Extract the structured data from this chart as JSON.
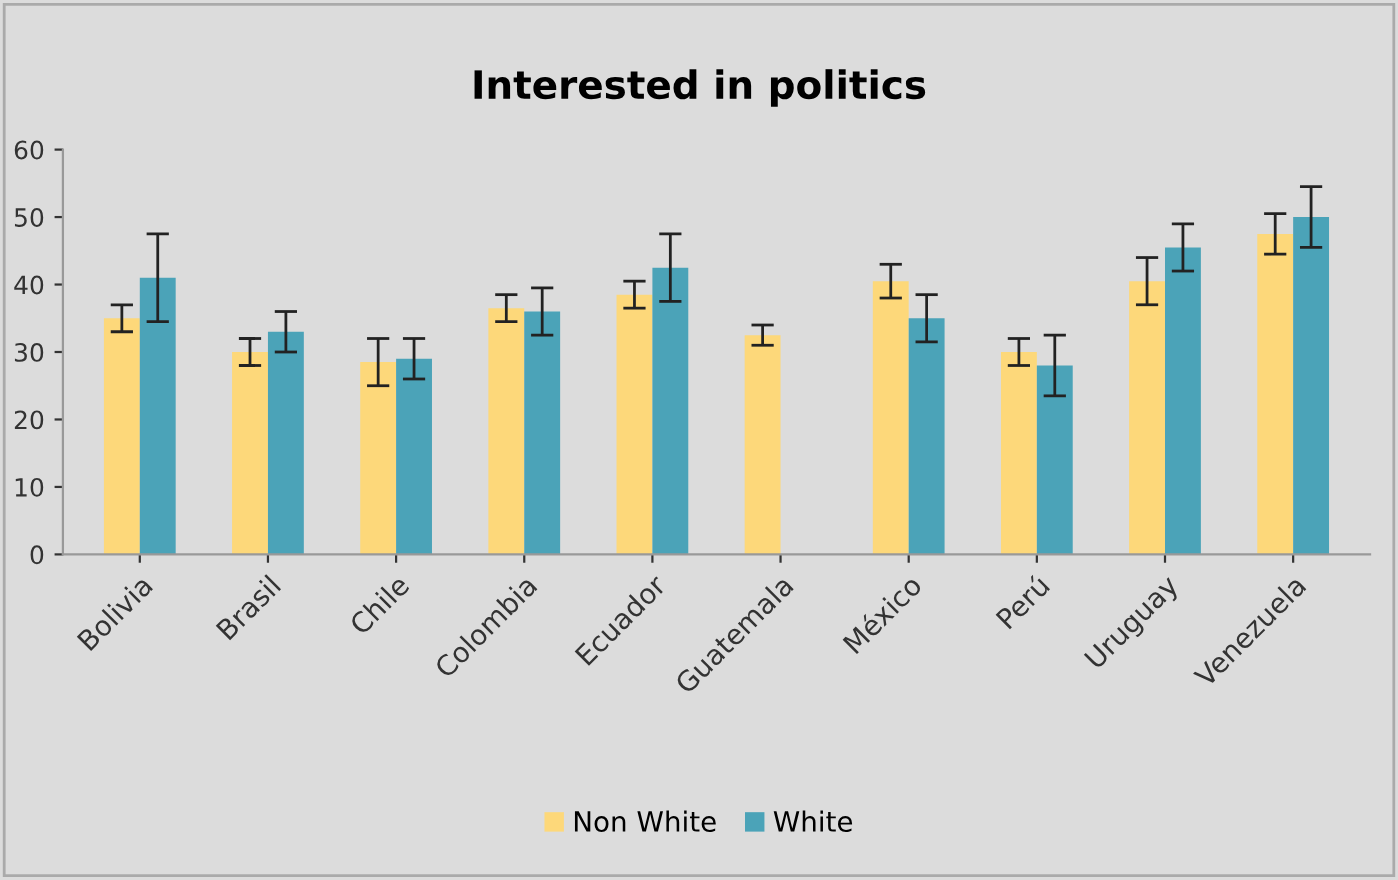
{
  "chart_data": {
    "type": "bar",
    "title": "Interested in politics",
    "categories": [
      "Bolivia",
      "Brasil",
      "Chile",
      "Colombia",
      "Ecuador",
      "Guatemala",
      "México",
      "Perú",
      "Uruguay",
      "Venezuela"
    ],
    "series": [
      {
        "name": "Non White",
        "color": "#fdd87a",
        "values": [
          35,
          30,
          28.5,
          36.5,
          38.5,
          32.5,
          40.5,
          30,
          40.5,
          47.5
        ],
        "errors": [
          2,
          2,
          3.5,
          2,
          2,
          1.5,
          2.5,
          2,
          3.5,
          3
        ]
      },
      {
        "name": "White",
        "color": "#4ba3b8",
        "values": [
          41,
          33,
          29,
          36,
          42.5,
          null,
          35,
          28,
          45.5,
          50
        ],
        "errors": [
          6.5,
          3,
          3,
          3.5,
          5,
          null,
          3.5,
          4.5,
          3.5,
          4.5
        ]
      }
    ],
    "ylim": [
      0,
      60
    ],
    "yticks": [
      0,
      10,
      20,
      30,
      40,
      50,
      60
    ],
    "grid": false,
    "legend": "bottom"
  }
}
